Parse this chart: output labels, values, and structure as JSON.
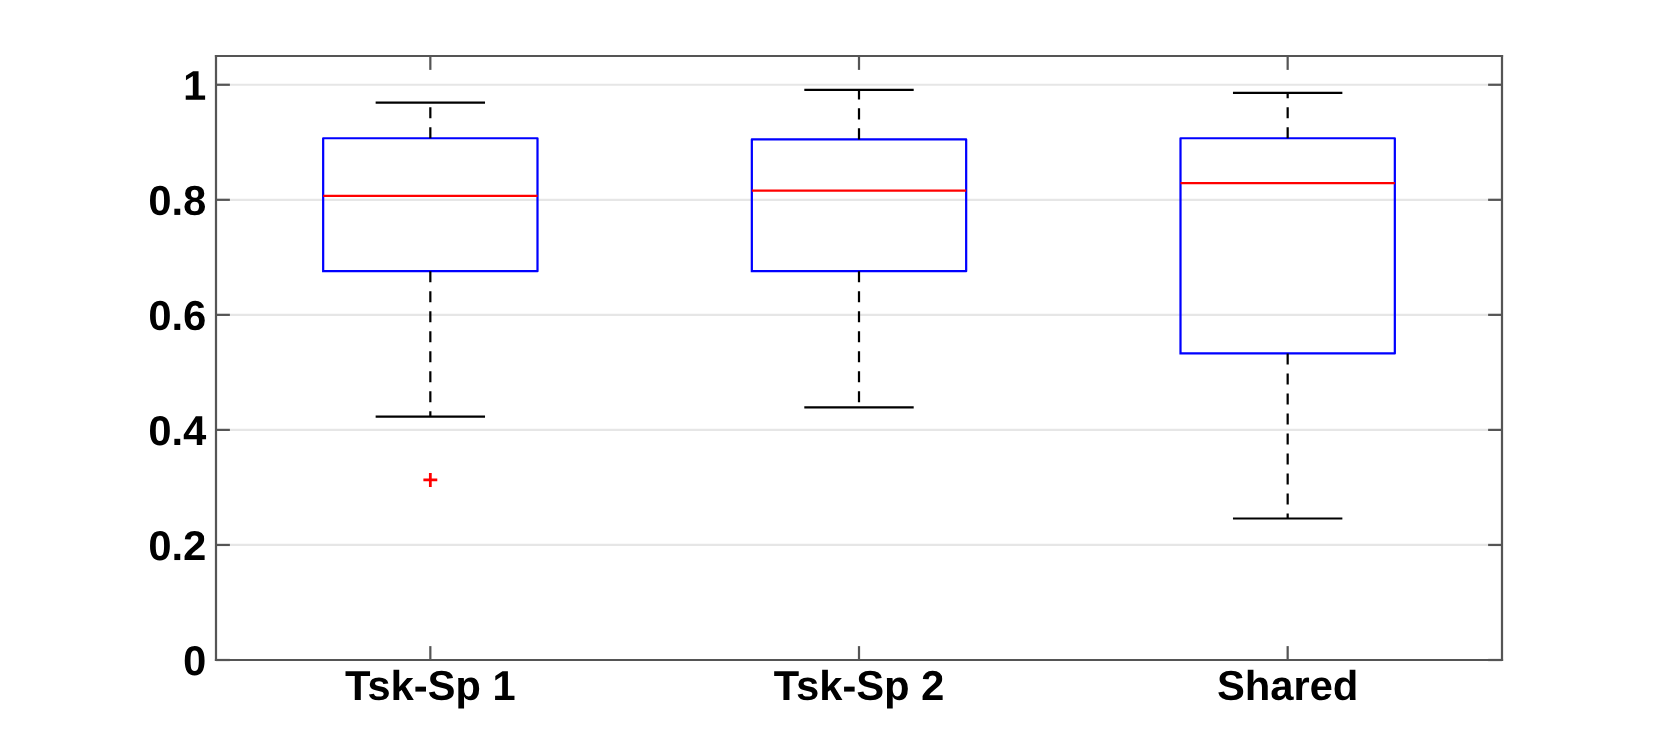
{
  "chart_data": {
    "type": "box",
    "categories": [
      "Tsk-Sp 1",
      "Tsk-Sp 2",
      "Shared"
    ],
    "boxes": [
      {
        "low": 0.423,
        "q1": 0.676,
        "median": 0.807,
        "q3": 0.907,
        "high": 0.969,
        "outliers": [
          0.313
        ]
      },
      {
        "low": 0.439,
        "q1": 0.676,
        "median": 0.816,
        "q3": 0.905,
        "high": 0.991
      },
      {
        "low": 0.246,
        "q1": 0.533,
        "median": 0.829,
        "q3": 0.907,
        "high": 0.986
      }
    ],
    "color": "#0000ff",
    "ylim": [
      0,
      1.05
    ],
    "yticks": [
      0,
      0.2,
      0.4,
      0.6,
      0.8,
      1
    ],
    "grid": "y",
    "line_style": "dashed"
  }
}
